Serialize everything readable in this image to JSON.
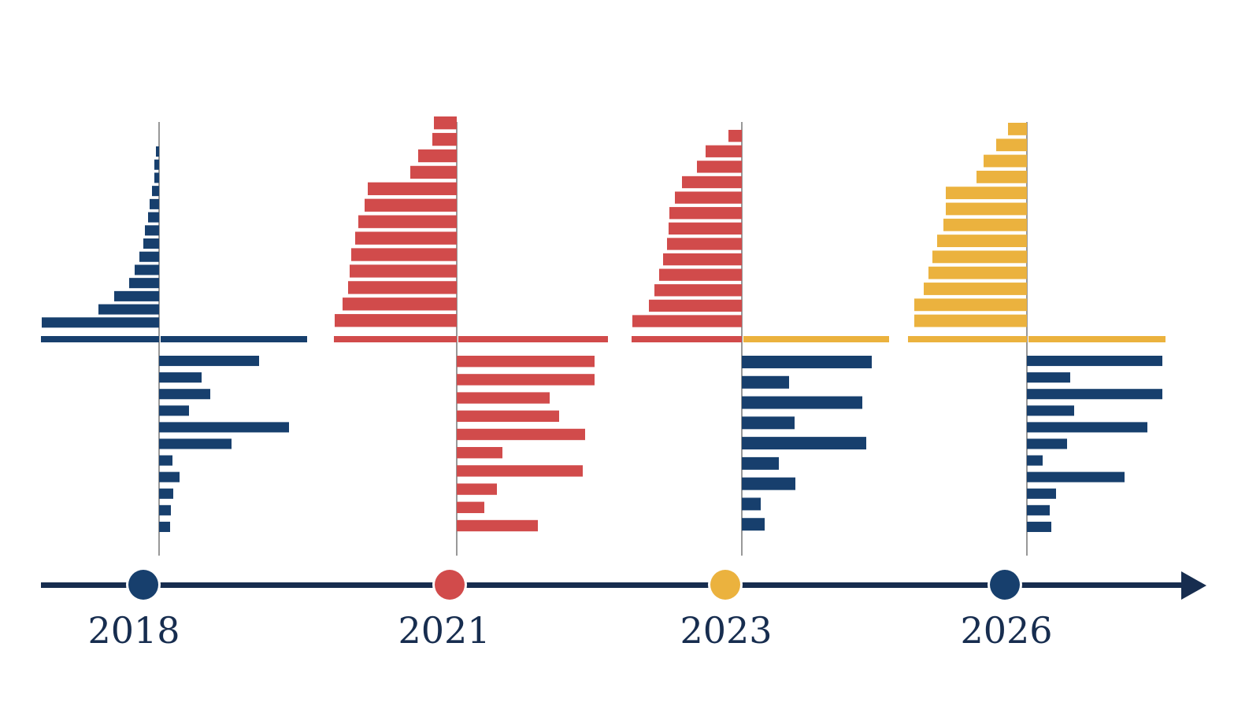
{
  "colors": {
    "navy": "#173f6d",
    "red": "#d14b4b",
    "yellow": "#ebb23e",
    "timeline": "#172d4f",
    "year_text": "#172d4f"
  },
  "timeline": {
    "years": [
      "2018",
      "2021",
      "2023",
      "2026"
    ],
    "marker_colors": [
      "#173f6d",
      "#d14b4b",
      "#ebb23e",
      "#173f6d"
    ]
  },
  "chart_data": [
    {
      "type": "bar",
      "year": "2018",
      "upper": {
        "color": "#173f6d",
        "values": [
          4,
          6,
          6,
          9,
          12,
          14,
          18,
          20,
          25,
          31,
          38,
          57,
          77,
          149
        ]
      },
      "baseline_right": {
        "color": "#173f6d",
        "value": 186
      },
      "lower": {
        "color": "#173f6d",
        "values": [
          127,
          54,
          65,
          38,
          165,
          92,
          17,
          26,
          18,
          15,
          14
        ]
      }
    },
    {
      "type": "bar",
      "year": "2021",
      "upper": {
        "color": "#d14b4b",
        "values": [
          29,
          31,
          49,
          59,
          113,
          117,
          125,
          129,
          134,
          136,
          138,
          145,
          155
        ]
      },
      "baseline_right": {
        "color": "#d14b4b",
        "value": 190
      },
      "lower": {
        "color": "#d14b4b",
        "values": [
          175,
          175,
          118,
          130,
          163,
          58,
          160,
          51,
          35,
          103
        ]
      }
    },
    {
      "type": "bar",
      "year": "2023",
      "upper": {
        "color": "#d14b4b",
        "values": [
          17,
          46,
          57,
          76,
          85,
          92,
          93,
          95,
          100,
          105,
          111,
          118,
          139
        ]
      },
      "baseline_right": {
        "color": "#ebb23e",
        "value": 185
      },
      "lower": {
        "color": "#173f6d",
        "values": [
          165,
          60,
          153,
          67,
          158,
          47,
          68,
          24,
          29
        ]
      }
    },
    {
      "type": "bar",
      "year": "2026",
      "upper": {
        "color": "#ebb23e",
        "values": [
          24,
          39,
          55,
          64,
          103,
          103,
          106,
          114,
          120,
          125,
          131,
          143,
          143
        ]
      },
      "baseline_right": {
        "color": "#ebb23e",
        "value": 174
      },
      "lower": {
        "color": "#173f6d",
        "values": [
          172,
          55,
          172,
          60,
          153,
          51,
          20,
          124,
          37,
          29,
          31
        ]
      }
    }
  ]
}
